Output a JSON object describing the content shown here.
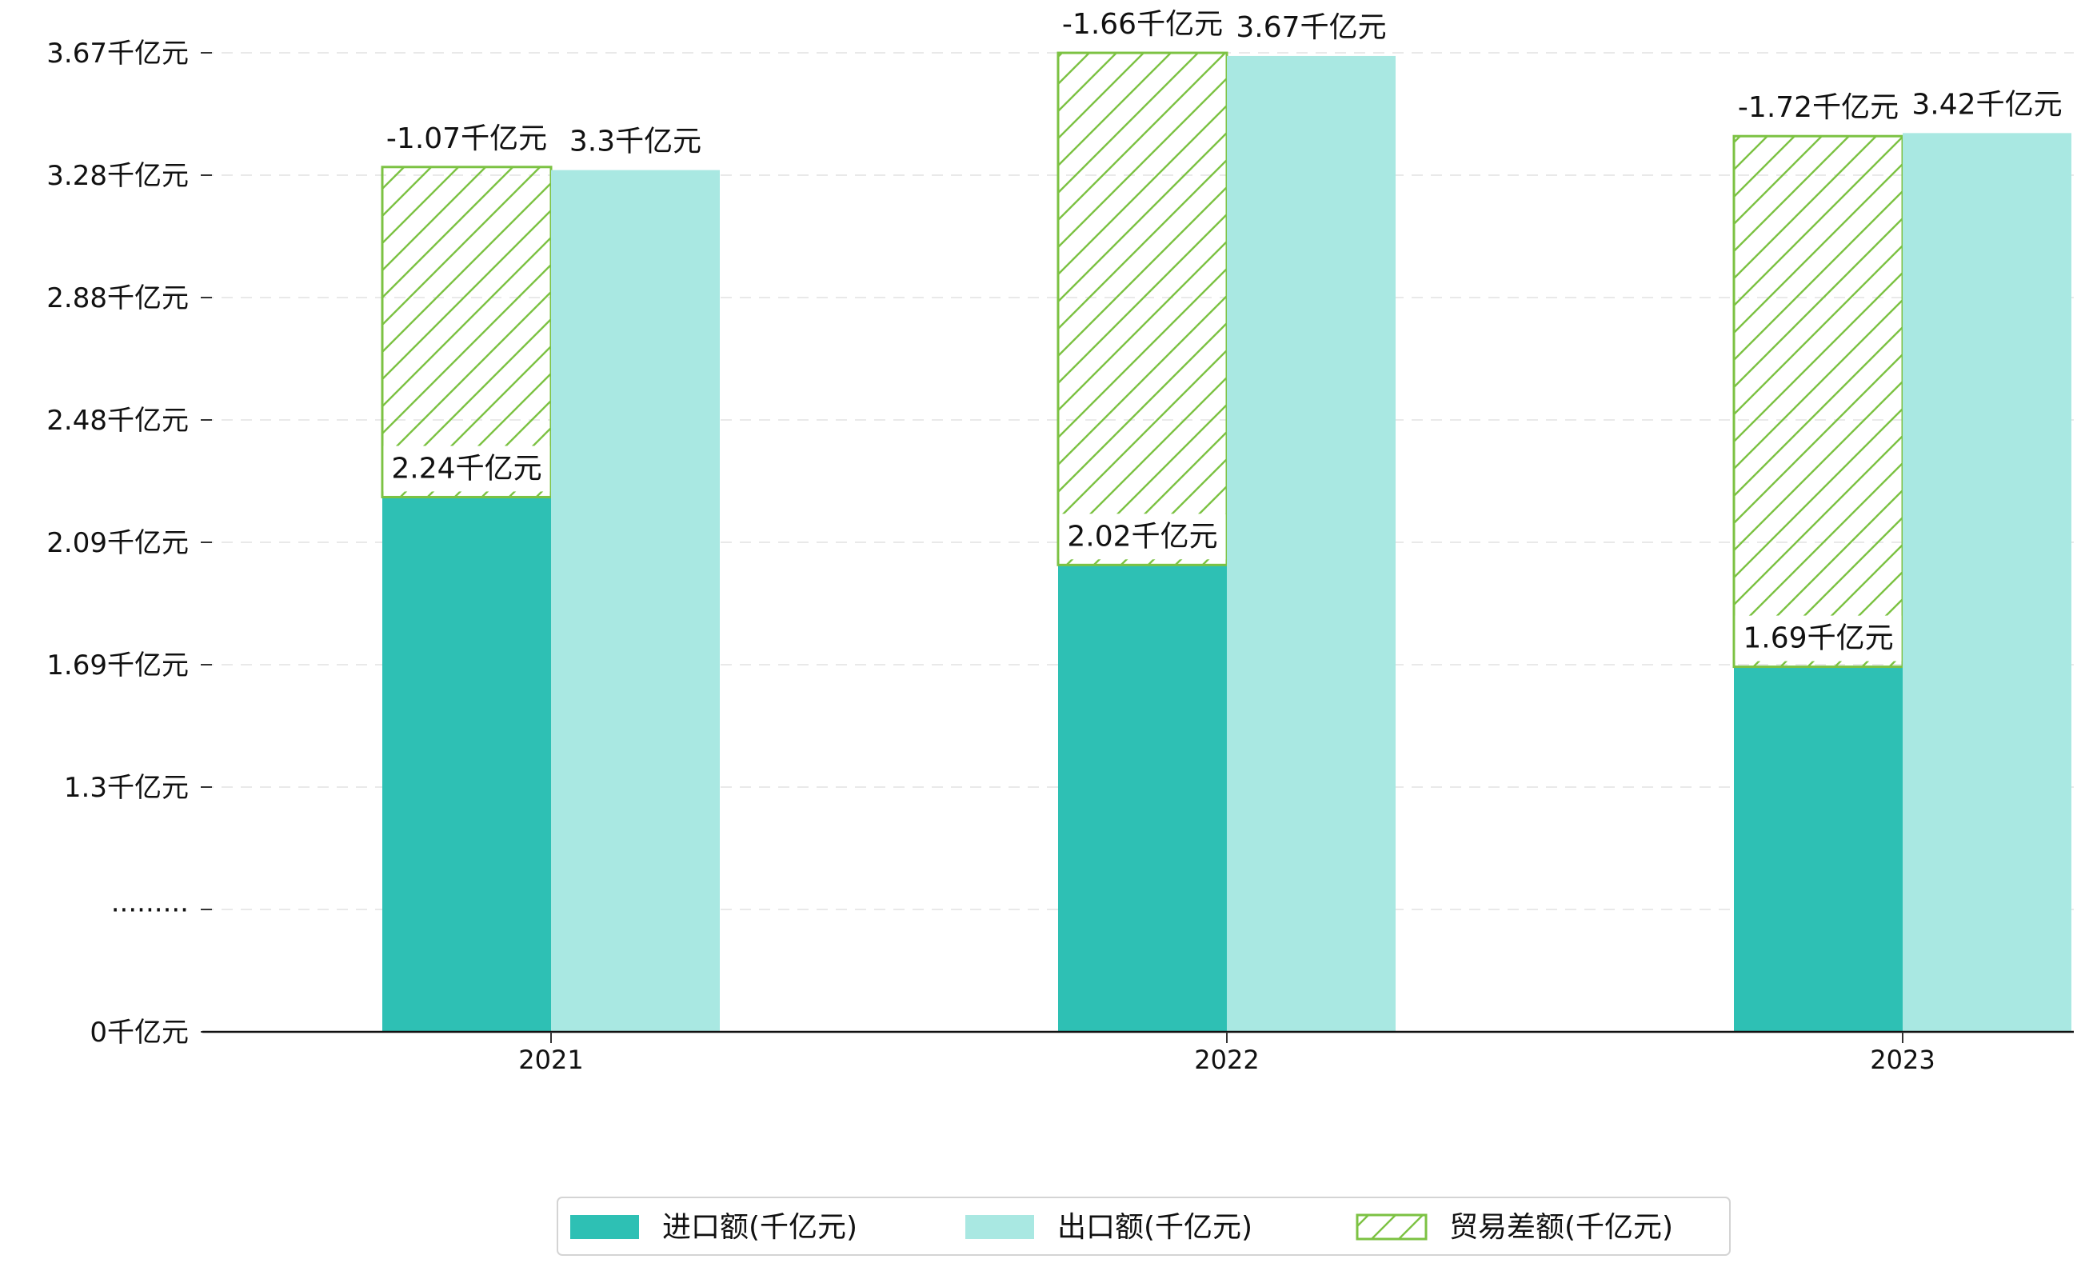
{
  "chart_data": {
    "type": "bar",
    "categories": [
      "2021",
      "2022",
      "2023"
    ],
    "series": [
      {
        "name": "进口额(千亿元)",
        "values": [
          2.24,
          2.02,
          1.69
        ],
        "labels": [
          "2.24千亿元",
          "2.02千亿元",
          "1.69千亿元"
        ],
        "color": "#2ec0b4",
        "stacked": true,
        "pattern": "solid"
      },
      {
        "name": "出口额(千亿元)",
        "values": [
          3.3,
          3.67,
          3.42
        ],
        "labels": [
          "3.3千亿元",
          "3.67千亿元",
          "3.42千亿元"
        ],
        "color": "#a9e8e2",
        "stacked": false,
        "pattern": "solid"
      },
      {
        "name": "贸易差额(千亿元)",
        "values": [
          -1.07,
          -1.66,
          -1.72
        ],
        "labels": [
          "-1.07千亿元",
          "-1.66千亿元",
          "-1.72千亿元"
        ],
        "color": "#7cc243",
        "stacked": true,
        "pattern": "hatch"
      }
    ],
    "y_ticks": [
      "0千亿元",
      "·········",
      "1.3千亿元",
      "1.69千亿元",
      "2.09千亿元",
      "2.48千亿元",
      "2.88千亿元",
      "3.28千亿元",
      "3.67千亿元"
    ],
    "y_axis_break": true,
    "grid": true,
    "legend_position": "bottom-center"
  }
}
